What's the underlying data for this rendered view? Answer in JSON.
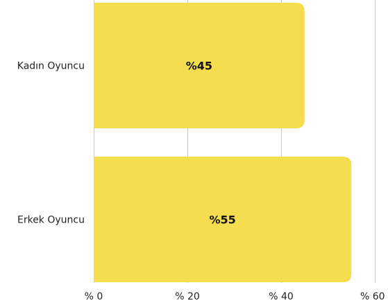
{
  "chart_data": {
    "type": "bar",
    "orientation": "horizontal",
    "categories": [
      "Kadın Oyuncu",
      "Erkek Oyuncu"
    ],
    "values": [
      45,
      55
    ],
    "data_labels": [
      "%45",
      "%55"
    ],
    "xlim": [
      0,
      60
    ],
    "x_ticks": [
      0,
      20,
      40,
      60
    ],
    "x_tick_labels": [
      "% 0",
      "% 20",
      "% 40",
      "% 60"
    ],
    "grid": "vertical",
    "bar_color": "#F4DD4F",
    "grid_color": "#C8C8C8",
    "title": "",
    "xlabel": "",
    "ylabel": ""
  }
}
